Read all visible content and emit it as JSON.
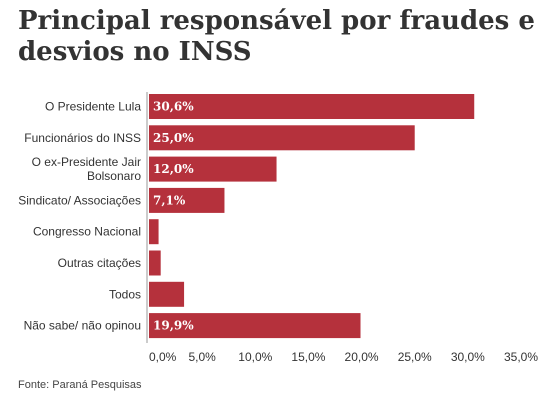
{
  "title": "Principal responsável por fraudes e desvios no INSS",
  "source": "Fonte: Paraná Pesquisas",
  "chart_data": {
    "type": "bar",
    "orientation": "horizontal",
    "title": "Principal responsável por fraudes e desvios no INSS",
    "categories": [
      "O Presidente Lula",
      "Funcionários do INSS",
      "O ex-Presidente Jair Bolsonaro",
      "Sindicato/ Associações",
      "Congresso Nacional",
      "Outras citações",
      "Todos",
      "Não sabe/ não opinou"
    ],
    "values": [
      30.6,
      25.0,
      12.0,
      7.1,
      0.9,
      1.1,
      3.3,
      19.9
    ],
    "data_labels": [
      "30,6%",
      "25,0%",
      "12,0%",
      "7,1%",
      "",
      "",
      "",
      "19,9%"
    ],
    "xlim": [
      0,
      35
    ],
    "xticks": [
      "0,0%",
      "5,0%",
      "10,0%",
      "15,0%",
      "20,0%",
      "25,0%",
      "30,0%",
      "35,0%"
    ],
    "grid": false,
    "bar_color": "#b5313c"
  }
}
